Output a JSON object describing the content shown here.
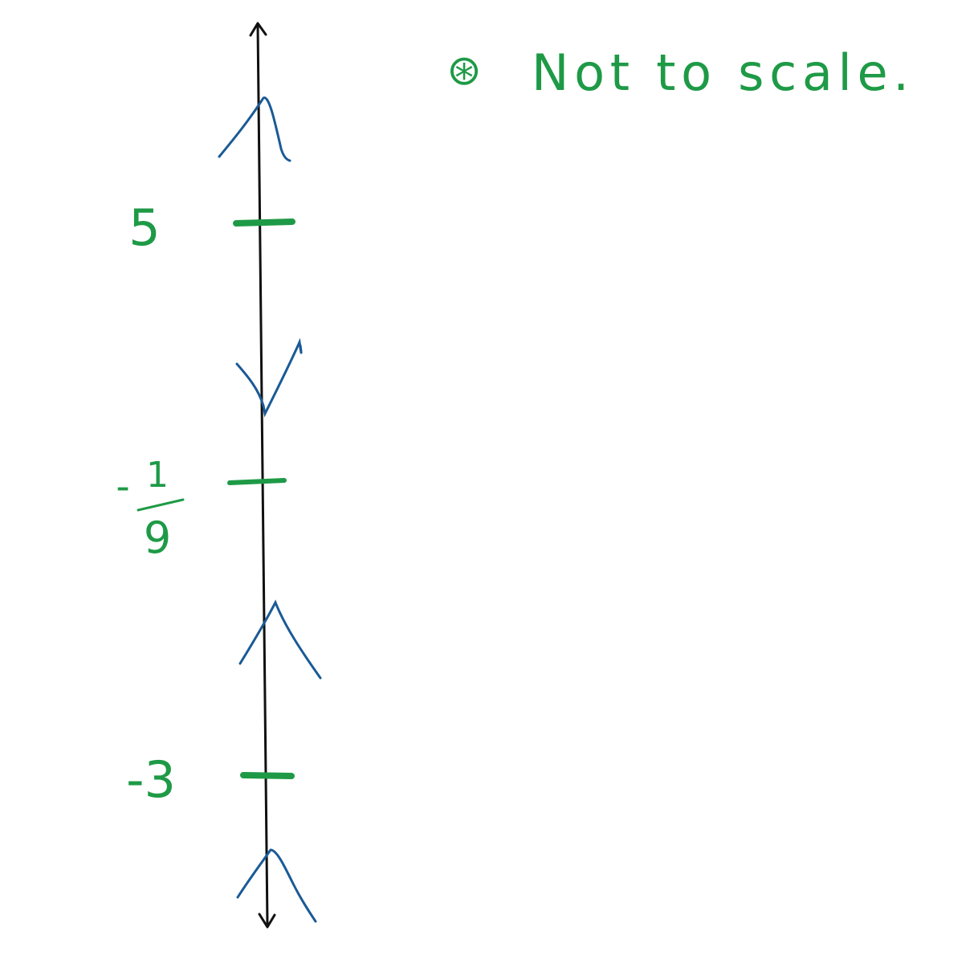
{
  "note": {
    "symbol": "⊛",
    "text": "Not to scale."
  },
  "axis": {
    "orientation": "vertical",
    "arrows": "both-ends",
    "color": "#111111"
  },
  "markers": [
    {
      "value_label": "5",
      "order": 1
    },
    {
      "value_label": "-1/9",
      "numerator": "1",
      "denominator": "9",
      "sign": "-",
      "order": 2
    },
    {
      "value_label": "-3",
      "order": 3
    }
  ],
  "sign_marks": [
    {
      "region": "above 5",
      "shape": "peak"
    },
    {
      "region": "between -1/9 and 5",
      "shape": "valley"
    },
    {
      "region": "between -3 and -1/9",
      "shape": "peak"
    },
    {
      "region": "below -3",
      "shape": "peak"
    }
  ],
  "colors": {
    "annotation_green": "#1e9a46",
    "sign_blue": "#1a5a96",
    "axis_black": "#111111"
  }
}
